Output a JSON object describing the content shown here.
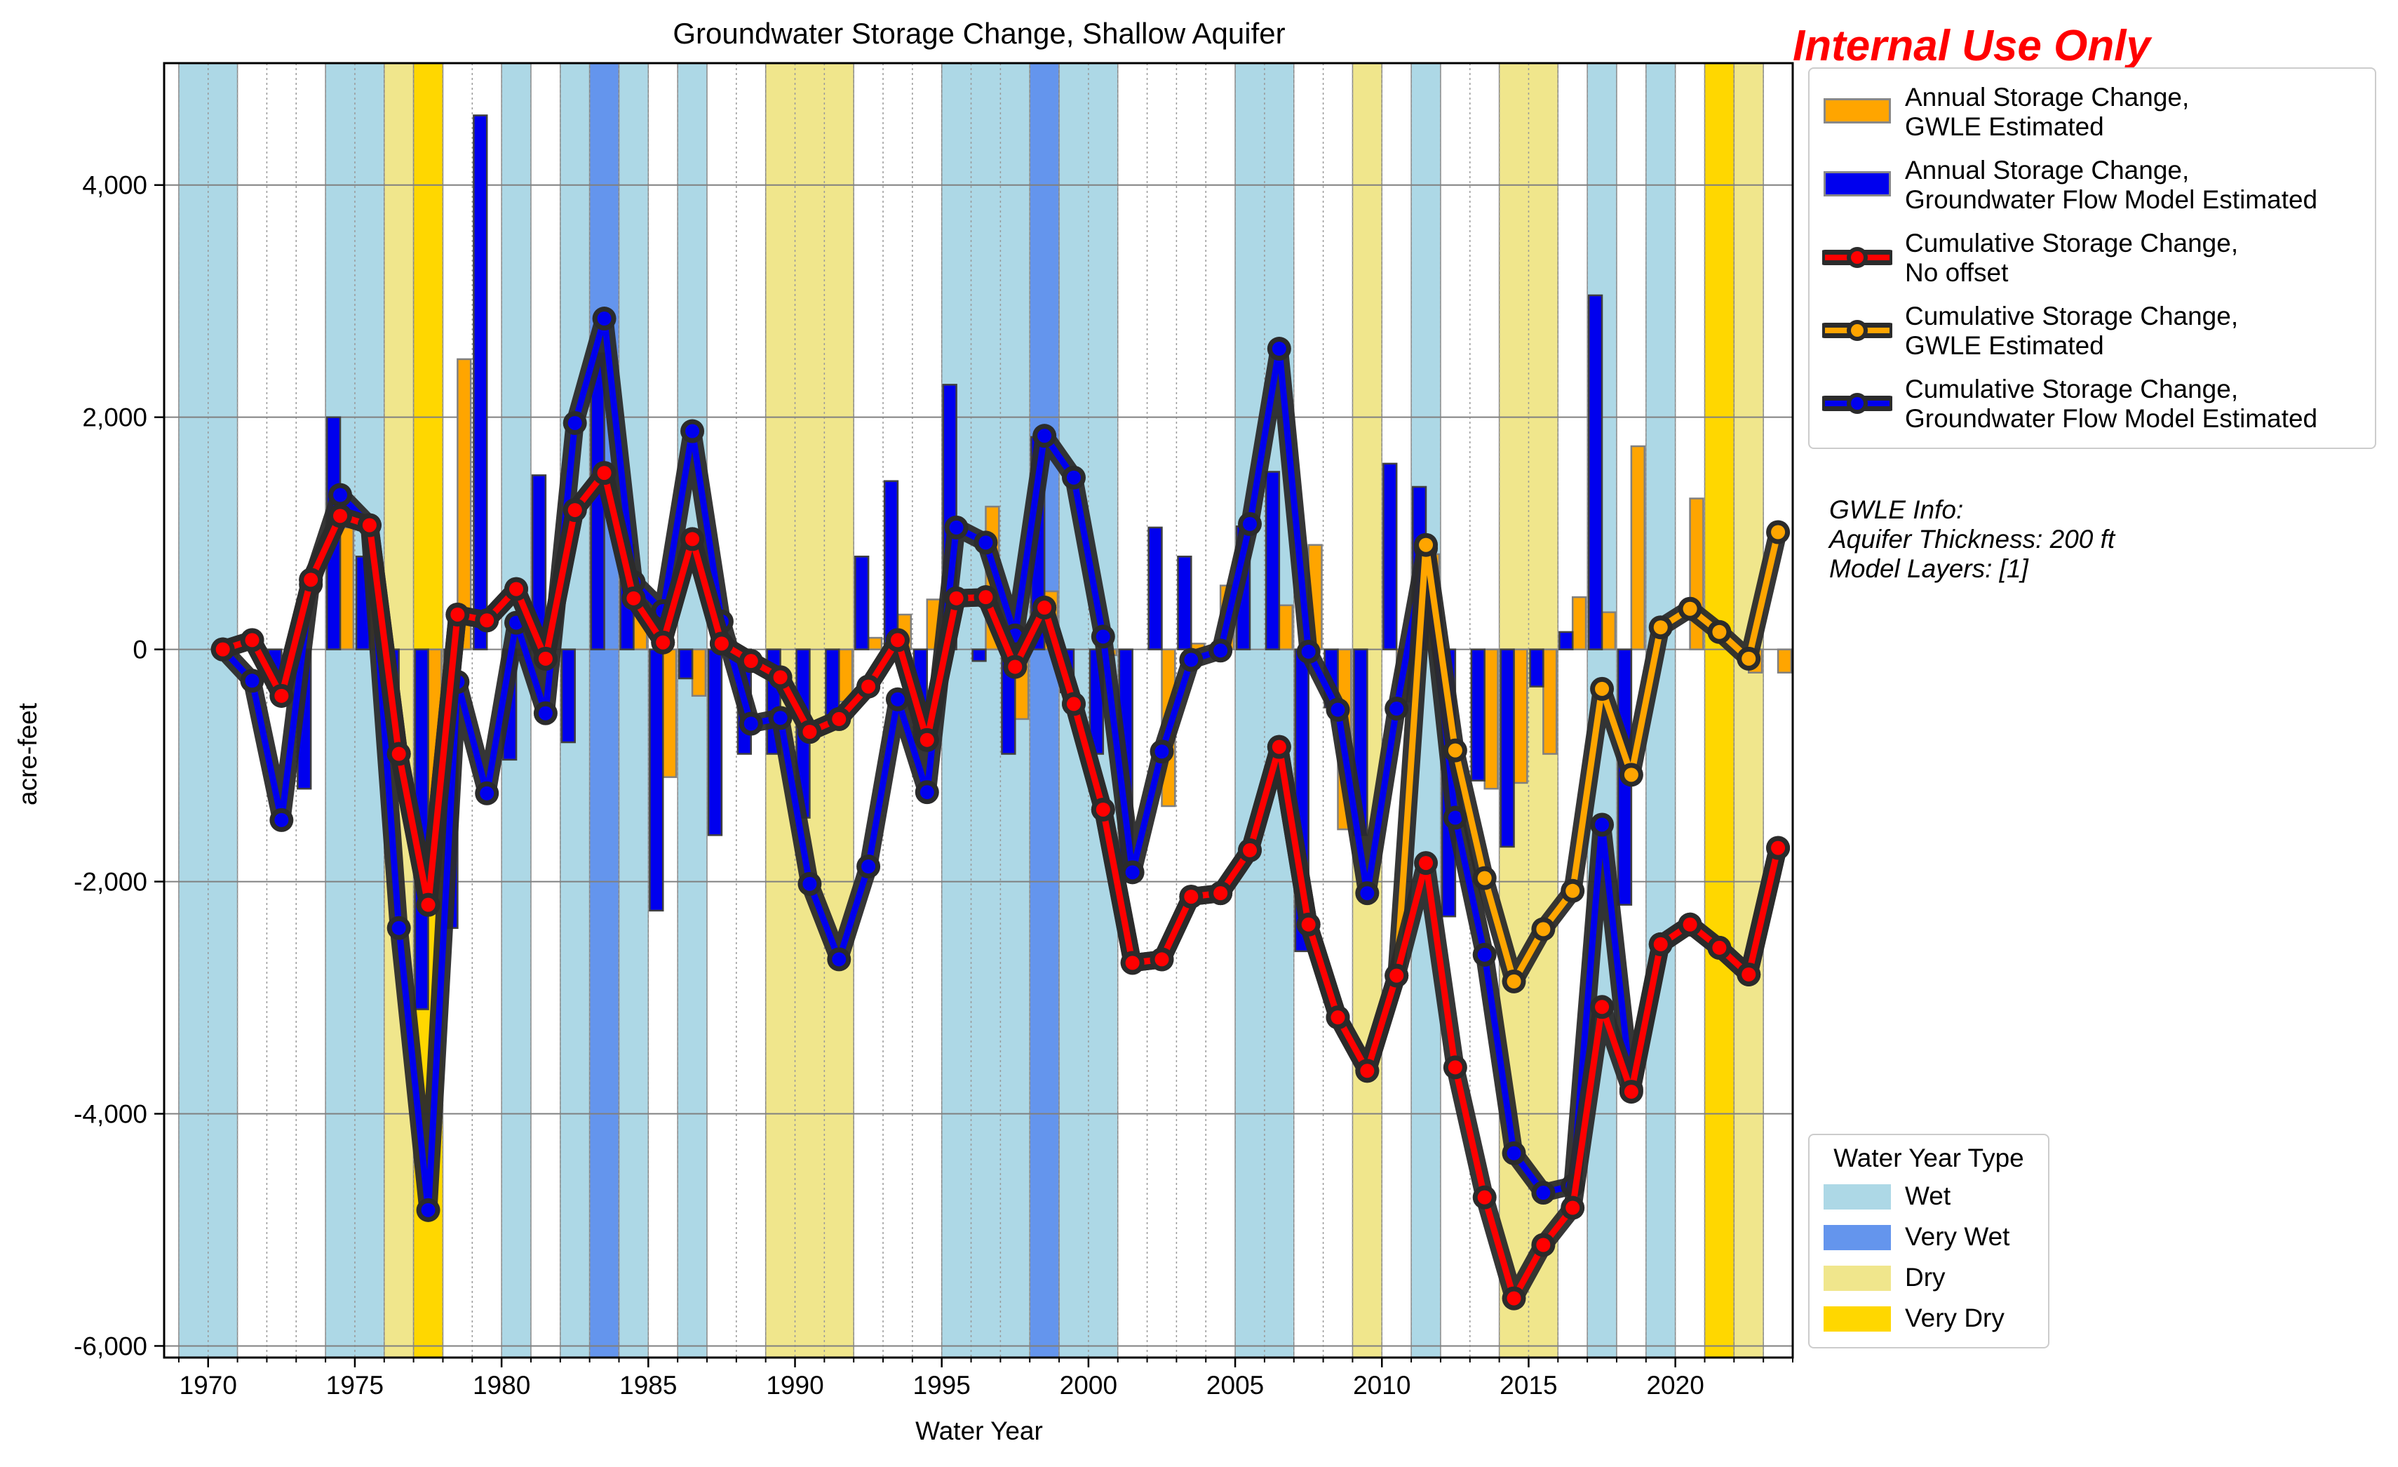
{
  "watermark": "Internal Use Only",
  "chart_data": {
    "type": "bar",
    "title": "Groundwater Storage Change, Shallow Aquifer",
    "xlabel": "Water Year",
    "ylabel": "acre-feet",
    "xlim": [
      1968.5,
      2024
    ],
    "ylim": [
      -6100,
      5050
    ],
    "xticks": [
      1970,
      1975,
      1980,
      1985,
      1990,
      1995,
      2000,
      2005,
      2010,
      2015,
      2020
    ],
    "xtick_labels": [
      "1970",
      "1975",
      "1980",
      "1985",
      "1990",
      "1995",
      "2000",
      "2005",
      "2010",
      "2015",
      "2020"
    ],
    "yticks": [
      4000,
      2000,
      0,
      -2000,
      -4000,
      -6000
    ],
    "ytick_labels": [
      "4,000",
      "2,000",
      "0",
      "-2,000",
      "-4,000",
      "-6,000"
    ],
    "grid": true,
    "years": [
      1970,
      1971,
      1972,
      1973,
      1974,
      1975,
      1976,
      1977,
      1978,
      1979,
      1980,
      1981,
      1982,
      1983,
      1984,
      1985,
      1986,
      1987,
      1988,
      1989,
      1990,
      1991,
      1992,
      1993,
      1994,
      1995,
      1996,
      1997,
      1998,
      1999,
      2000,
      2001,
      2002,
      2003,
      2004,
      2005,
      2006,
      2007,
      2008,
      2009,
      2010,
      2011,
      2012,
      2013,
      2014,
      2015,
      2016,
      2017,
      2018,
      2019,
      2020,
      2021,
      2022,
      2023
    ],
    "water_year_types": [
      {
        "start": 1969,
        "end": 1971,
        "type": "Wet"
      },
      {
        "start": 1974,
        "end": 1976,
        "type": "Wet"
      },
      {
        "start": 1976,
        "end": 1977,
        "type": "Dry"
      },
      {
        "start": 1977,
        "end": 1978,
        "type": "Very Dry"
      },
      {
        "start": 1980,
        "end": 1981,
        "type": "Wet"
      },
      {
        "start": 1982,
        "end": 1983,
        "type": "Wet"
      },
      {
        "start": 1983,
        "end": 1984,
        "type": "Very Wet"
      },
      {
        "start": 1984,
        "end": 1985,
        "type": "Wet"
      },
      {
        "start": 1986,
        "end": 1987,
        "type": "Wet"
      },
      {
        "start": 1989,
        "end": 1992,
        "type": "Dry"
      },
      {
        "start": 1995,
        "end": 1998,
        "type": "Wet"
      },
      {
        "start": 1998,
        "end": 1999,
        "type": "Very Wet"
      },
      {
        "start": 1999,
        "end": 2001,
        "type": "Wet"
      },
      {
        "start": 2005,
        "end": 2007,
        "type": "Wet"
      },
      {
        "start": 2009,
        "end": 2010,
        "type": "Dry"
      },
      {
        "start": 2011,
        "end": 2012,
        "type": "Wet"
      },
      {
        "start": 2014,
        "end": 2016,
        "type": "Dry"
      },
      {
        "start": 2017,
        "end": 2018,
        "type": "Wet"
      },
      {
        "start": 2019,
        "end": 2020,
        "type": "Wet"
      },
      {
        "start": 2021,
        "end": 2022,
        "type": "Very Dry"
      },
      {
        "start": 2022,
        "end": 2023,
        "type": "Dry"
      }
    ],
    "series": [
      {
        "name": "Annual Storage Change, GWLE Estimated",
        "kind": "bar",
        "color": "#ffa500",
        "values": [
          0,
          0,
          0,
          0,
          1050,
          550,
          0,
          -1950,
          2500,
          0,
          -50,
          0,
          0,
          0,
          300,
          -1100,
          -400,
          0,
          0,
          0,
          0,
          -450,
          100,
          300,
          430,
          0,
          1230,
          -600,
          500,
          0,
          -50,
          0,
          -1350,
          50,
          550,
          0,
          380,
          900,
          -1550,
          0,
          -450,
          820,
          0,
          -1200,
          -1150,
          -900,
          450,
          320,
          1750,
          0,
          1300,
          0,
          -200,
          -200
        ]
      },
      {
        "name": "Annual Storage Change, Groundwater Flow Model Estimated",
        "kind": "bar",
        "color": "#0000ee",
        "values": [
          0,
          0,
          -250,
          -1200,
          2000,
          800,
          -600,
          -3100,
          -2400,
          4600,
          -950,
          1500,
          -800,
          2550,
          900,
          -2250,
          -250,
          -1600,
          -900,
          -900,
          -1450,
          -600,
          800,
          1450,
          -800,
          2280,
          -100,
          -900,
          1830,
          -370,
          -900,
          -1950,
          1050,
          800,
          0,
          1060,
          1530,
          -2600,
          -500,
          -1600,
          1600,
          1400,
          -2300,
          -1130,
          -1700,
          -320,
          150,
          3050,
          -2200,
          0,
          0,
          0,
          0,
          0
        ]
      },
      {
        "name": "Cumulative Storage Change, No offset",
        "kind": "line",
        "color": "#ff0000",
        "values": [
          0,
          80,
          -400,
          600,
          1150,
          1070,
          -900,
          -2200,
          300,
          250,
          520,
          -80,
          1200,
          1520,
          440,
          60,
          950,
          50,
          -100,
          -240,
          -710,
          -600,
          -320,
          80,
          -780,
          440,
          450,
          -150,
          360,
          -470,
          -1380,
          -2700,
          -2670,
          -2130,
          -2100,
          -1730,
          -840,
          -2370,
          -3170,
          -3630,
          -2810,
          -1840,
          -3600,
          -4720,
          -5590,
          -5130,
          -4810,
          -3080,
          -3810,
          -2540,
          -2370,
          -2570,
          -2800,
          -1710
        ]
      },
      {
        "name": "Cumulative Storage Change, GWLE Estimated",
        "kind": "line",
        "color": "#ffa500",
        "values": [
          0,
          80,
          -400,
          600,
          1150,
          1070,
          -900,
          -2200,
          300,
          250,
          520,
          -80,
          1200,
          1520,
          440,
          60,
          950,
          50,
          -100,
          -240,
          -710,
          -600,
          -320,
          80,
          -780,
          440,
          450,
          -150,
          360,
          -470,
          -1380,
          -2700,
          -2670,
          -2130,
          -2100,
          -1730,
          -840,
          -2370,
          -3170,
          -3630,
          -2810,
          900,
          -870,
          -1970,
          -2860,
          -2410,
          -2080,
          -340,
          -1080,
          190,
          350,
          150,
          -80,
          1010
        ]
      },
      {
        "name": "Cumulative Storage Change, Groundwater Flow Model Estimated",
        "kind": "line",
        "color": "#0000ee",
        "values": [
          0,
          -270,
          -1470,
          560,
          1330,
          1070,
          -2400,
          -4830,
          -280,
          -1240,
          230,
          -550,
          1950,
          2850,
          580,
          330,
          1880,
          240,
          -640,
          -590,
          -2020,
          -2670,
          -1870,
          -430,
          -1230,
          1050,
          920,
          120,
          1840,
          1480,
          110,
          -1920,
          -880,
          -90,
          -10,
          1080,
          2590,
          -20,
          -520,
          -2100,
          -510,
          870,
          -1450,
          -2630,
          -4340,
          -4680,
          -4620,
          -1510,
          -3790,
          -2540,
          -2370,
          -2570,
          -2800,
          -1710
        ]
      }
    ],
    "legend": {
      "placement": "outside-right-top",
      "entries": [
        "Annual Storage Change,\nGWLE Estimated",
        "Annual Storage Change,\nGroundwater Flow Model Estimated",
        "Cumulative Storage Change,\nNo offset",
        "Cumulative Storage Change,\nGWLE Estimated",
        "Cumulative Storage Change,\nGroundwater Flow Model Estimated"
      ]
    },
    "wyt_legend": {
      "placement": "outside-right-bottom",
      "title": "Water Year Type",
      "entries": [
        {
          "label": "Wet",
          "color": "#add8e6"
        },
        {
          "label": "Very Wet",
          "color": "#6495ed"
        },
        {
          "label": "Dry",
          "color": "#f0e68c"
        },
        {
          "label": "Very Dry",
          "color": "#ffd700"
        }
      ]
    },
    "annotation": [
      "GWLE Info:",
      "Aquifer Thickness: 200 ft",
      "Model Layers: [1]"
    ]
  }
}
